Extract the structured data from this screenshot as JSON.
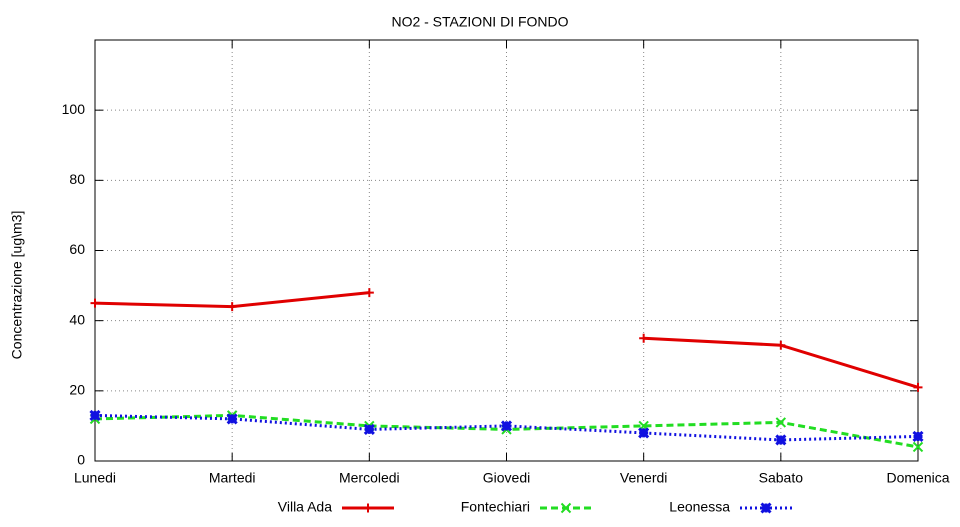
{
  "chart_data": {
    "type": "line",
    "title": "NO2 - STAZIONI DI FONDO",
    "y_label": "Concentrazione [ug\\m3]",
    "categories": [
      "Lunedi",
      "Martedi",
      "Mercoledi",
      "Giovedi",
      "Venerdi",
      "Sabato",
      "Domenica"
    ],
    "series": [
      {
        "name": "Villa Ada",
        "color": "#e00000",
        "dash": "solid",
        "marker": "plus",
        "values": [
          45,
          44,
          48,
          null,
          35,
          33,
          21
        ]
      },
      {
        "name": "Fontechiari",
        "color": "#22dd22",
        "dash": "dashed",
        "marker": "cross",
        "values": [
          12,
          13,
          10,
          9,
          10,
          11,
          4
        ]
      },
      {
        "name": "Leonessa",
        "color": "#1010e0",
        "dash": "dotted",
        "marker": "star",
        "values": [
          13,
          12,
          9,
          10,
          8,
          6,
          7
        ]
      }
    ],
    "ylim": [
      0,
      120
    ],
    "yticks": [
      0,
      20,
      40,
      60,
      80,
      100
    ],
    "grid": true,
    "legend": "bottom"
  }
}
